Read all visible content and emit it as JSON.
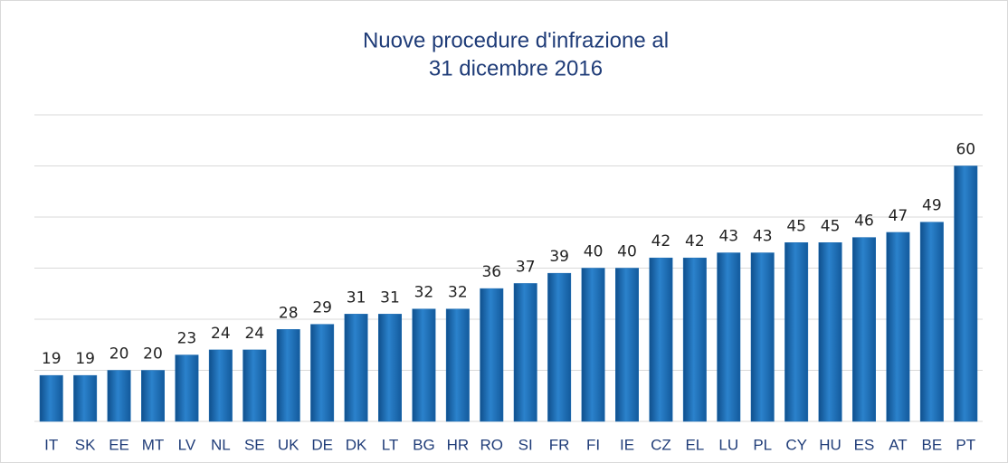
{
  "chart_data": {
    "type": "bar",
    "title": [
      "Nuove procedure d'infrazione al",
      "31 dicembre 2016"
    ],
    "categories": [
      "IT",
      "SK",
      "EE",
      "MT",
      "LV",
      "NL",
      "SE",
      "UK",
      "DE",
      "DK",
      "LT",
      "BG",
      "HR",
      "RO",
      "SI",
      "FR",
      "FI",
      "IE",
      "CZ",
      "EL",
      "LU",
      "PL",
      "CY",
      "HU",
      "ES",
      "AT",
      "BE",
      "PT"
    ],
    "values": [
      19,
      19,
      20,
      20,
      23,
      24,
      24,
      28,
      29,
      31,
      31,
      32,
      32,
      36,
      37,
      39,
      40,
      40,
      42,
      42,
      43,
      43,
      45,
      45,
      46,
      47,
      49,
      60
    ],
    "color": "#1c6cb3",
    "ylim": [
      10,
      70
    ],
    "yticks": [
      10,
      20,
      30,
      40,
      50,
      60,
      70
    ],
    "grid": true
  }
}
